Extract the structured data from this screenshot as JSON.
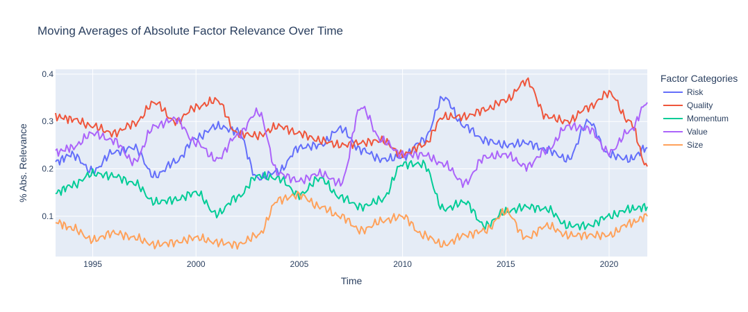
{
  "chart_data": {
    "type": "line",
    "title": "Moving Averages of Absolute Factor Relevance Over Time",
    "xlabel": "Time",
    "ylabel": "% Abs. Relevance",
    "xlim": [
      1993.2,
      2021.85
    ],
    "ylim": [
      0.015,
      0.41
    ],
    "x_ticks": [
      1995,
      2000,
      2005,
      2010,
      2015,
      2020
    ],
    "y_ticks": [
      0.1,
      0.2,
      0.3,
      0.4
    ],
    "grid": true,
    "legend": {
      "title": "Factor Categories",
      "placement": "right"
    },
    "x": [
      1993.2,
      1994,
      1995,
      1996,
      1997,
      1998,
      1999,
      2000,
      2001,
      2002,
      2003,
      2004,
      2005,
      2006,
      2007,
      2008,
      2009,
      2010,
      2011,
      2012,
      2013,
      2014,
      2015,
      2016,
      2017,
      2018,
      2019,
      2020,
      2021,
      2021.85
    ],
    "series": [
      {
        "name": "Risk",
        "color": "#636efa",
        "values": [
          0.215,
          0.23,
          0.195,
          0.235,
          0.245,
          0.185,
          0.215,
          0.265,
          0.29,
          0.28,
          0.18,
          0.195,
          0.245,
          0.25,
          0.285,
          0.24,
          0.22,
          0.225,
          0.26,
          0.35,
          0.29,
          0.26,
          0.25,
          0.255,
          0.24,
          0.22,
          0.3,
          0.23,
          0.22,
          0.245
        ]
      },
      {
        "name": "Quality",
        "color": "#ef553b",
        "values": [
          0.31,
          0.305,
          0.29,
          0.275,
          0.295,
          0.34,
          0.3,
          0.33,
          0.345,
          0.275,
          0.27,
          0.29,
          0.275,
          0.26,
          0.25,
          0.255,
          0.26,
          0.23,
          0.25,
          0.31,
          0.31,
          0.325,
          0.345,
          0.385,
          0.31,
          0.3,
          0.33,
          0.36,
          0.3,
          0.205
        ]
      },
      {
        "name": "Momentum",
        "color": "#00cc96",
        "values": [
          0.15,
          0.165,
          0.19,
          0.185,
          0.17,
          0.13,
          0.135,
          0.15,
          0.105,
          0.14,
          0.185,
          0.18,
          0.145,
          0.18,
          0.14,
          0.12,
          0.135,
          0.21,
          0.21,
          0.115,
          0.13,
          0.08,
          0.11,
          0.12,
          0.115,
          0.08,
          0.08,
          0.1,
          0.115,
          0.12
        ]
      },
      {
        "name": "Value",
        "color": "#ab63fa",
        "values": [
          0.235,
          0.245,
          0.275,
          0.26,
          0.215,
          0.29,
          0.305,
          0.255,
          0.22,
          0.27,
          0.32,
          0.19,
          0.175,
          0.19,
          0.17,
          0.33,
          0.26,
          0.23,
          0.23,
          0.21,
          0.17,
          0.225,
          0.23,
          0.205,
          0.24,
          0.29,
          0.285,
          0.235,
          0.28,
          0.34
        ]
      },
      {
        "name": "Size",
        "color": "#ffa15a",
        "values": [
          0.088,
          0.075,
          0.05,
          0.065,
          0.055,
          0.04,
          0.045,
          0.055,
          0.045,
          0.04,
          0.06,
          0.135,
          0.145,
          0.12,
          0.1,
          0.07,
          0.09,
          0.1,
          0.06,
          0.04,
          0.06,
          0.07,
          0.11,
          0.055,
          0.08,
          0.06,
          0.06,
          0.06,
          0.085,
          0.1
        ]
      }
    ]
  }
}
